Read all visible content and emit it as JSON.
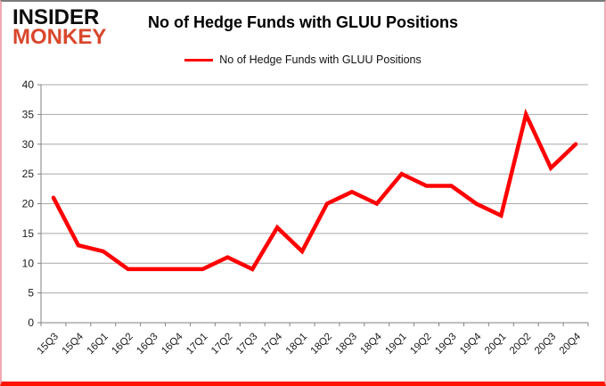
{
  "brand": {
    "line1": "INSIDER",
    "line2": "MONKEY"
  },
  "title": "No of Hedge Funds with GLUU Positions",
  "legend": {
    "label": "No of Hedge Funds with GLUU Positions"
  },
  "colors": {
    "line": "#ff0000",
    "grid": "#a9a9a9",
    "axis": "#808080",
    "label": "#1a1a1a",
    "brand_red": "#d9472b"
  },
  "chart_data": {
    "type": "line",
    "title": "No of Hedge Funds with GLUU Positions",
    "categories": [
      "15Q3",
      "15Q4",
      "16Q1",
      "16Q2",
      "16Q3",
      "16Q4",
      "17Q1",
      "17Q2",
      "17Q3",
      "17Q4",
      "18Q1",
      "18Q2",
      "18Q3",
      "18Q4",
      "19Q1",
      "19Q2",
      "19Q3",
      "19Q4",
      "20Q1",
      "20Q2",
      "20Q3",
      "20Q4"
    ],
    "series": [
      {
        "name": "No of Hedge Funds with GLUU Positions",
        "color": "#ff0000",
        "values": [
          21,
          13,
          12,
          9,
          9,
          9,
          9,
          11,
          9,
          16,
          12,
          20,
          22,
          20,
          25,
          23,
          23,
          20,
          18,
          35,
          26,
          30
        ]
      }
    ],
    "xlabel": "",
    "ylabel": "",
    "ylim": [
      0,
      40
    ],
    "ytick_step": 5,
    "grid": true,
    "legend_position": "top"
  }
}
